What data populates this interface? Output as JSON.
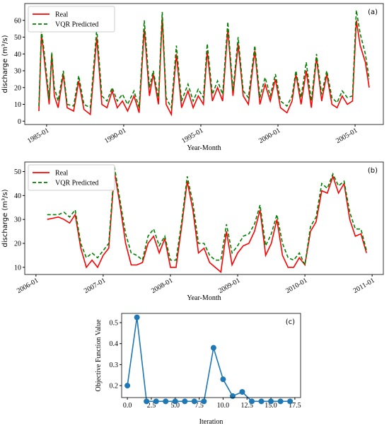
{
  "chart_data": [
    {
      "type": "line",
      "annotation": "(a)",
      "xlabel": "Year-Month",
      "ylabel": "discharge (m³/s)",
      "legend": "upper left",
      "x": [
        "1984-07",
        "1984-09",
        "1984-11",
        "1985-03",
        "1985-05",
        "1985-07",
        "1985-10",
        "1986-02",
        "1986-05",
        "1986-10",
        "1987-02",
        "1987-06",
        "1987-11",
        "1988-04",
        "1988-08",
        "1988-12",
        "1989-04",
        "1989-08",
        "1989-12",
        "1990-04",
        "1990-09",
        "1991-01",
        "1991-05",
        "1991-09",
        "1991-12",
        "1992-04",
        "1992-07",
        "1992-10",
        "1993-02",
        "1993-06",
        "1993-10",
        "1994-03",
        "1994-07",
        "1994-11",
        "1995-03",
        "1995-06",
        "1995-10",
        "1996-02",
        "1996-06",
        "1996-10",
        "1997-02",
        "1997-06",
        "1997-10",
        "1998-02",
        "1998-07",
        "1998-11",
        "1999-03",
        "1999-07",
        "1999-11",
        "2000-03",
        "2000-08",
        "2000-12",
        "2001-03",
        "2001-07",
        "2001-11",
        "2002-03",
        "2002-07",
        "2002-11",
        "2003-03",
        "2003-07",
        "2003-11",
        "2004-03",
        "2004-07",
        "2004-11",
        "2005-02",
        "2005-05",
        "2005-09",
        "2005-12"
      ],
      "series": [
        {
          "name": "Real",
          "color": "#ff0000",
          "linestyle": "solid",
          "values": [
            6,
            52,
            38,
            10,
            40,
            15,
            8,
            28,
            8,
            6,
            24,
            7,
            4,
            50,
            10,
            8,
            18,
            8,
            12,
            6,
            15,
            5,
            55,
            15,
            28,
            10,
            62,
            10,
            4,
            40,
            8,
            18,
            8,
            15,
            10,
            42,
            12,
            20,
            12,
            55,
            15,
            46,
            15,
            10,
            42,
            10,
            22,
            12,
            25,
            8,
            5,
            12,
            28,
            10,
            30,
            8,
            38,
            12,
            28,
            10,
            8,
            15,
            10,
            12,
            60,
            45,
            35,
            20
          ]
        },
        {
          "name": "VQR Predicted",
          "color": "#008000",
          "linestyle": "dashed",
          "values": [
            9,
            54,
            42,
            13,
            41,
            20,
            12,
            30,
            10,
            9,
            27,
            10,
            8,
            55,
            15,
            12,
            20,
            12,
            16,
            10,
            18,
            8,
            60,
            20,
            30,
            14,
            65,
            14,
            8,
            45,
            12,
            22,
            12,
            19,
            14,
            46,
            16,
            24,
            16,
            59,
            18,
            50,
            18,
            14,
            45,
            14,
            26,
            15,
            28,
            12,
            9,
            15,
            30,
            14,
            35,
            12,
            40,
            16,
            30,
            14,
            11,
            18,
            14,
            15,
            66,
            52,
            40,
            25
          ]
        }
      ],
      "xlim": [
        "1983-08",
        "2006-11"
      ],
      "xticks": [
        "1985-01",
        "1990-01",
        "1995-01",
        "2000-01",
        "2005-01"
      ],
      "ylim": [
        -2,
        70
      ],
      "yticks": [
        0,
        10,
        20,
        30,
        40,
        50,
        60
      ]
    },
    {
      "type": "line",
      "annotation": "(b)",
      "xlabel": "Year-Month",
      "ylabel": "discharge (m³/s)",
      "legend": "upper left",
      "x": [
        "2006-03",
        "2006-04",
        "2006-05",
        "2006-06",
        "2006-07",
        "2006-08",
        "2006-09",
        "2006-10",
        "2006-11",
        "2006-12",
        "2007-01",
        "2007-02",
        "2007-03",
        "2007-04",
        "2007-05",
        "2007-06",
        "2007-07",
        "2007-08",
        "2007-09",
        "2007-10",
        "2007-11",
        "2007-12",
        "2008-01",
        "2008-02",
        "2008-03",
        "2008-04",
        "2008-05",
        "2008-06",
        "2008-07",
        "2008-08",
        "2008-09",
        "2008-10",
        "2008-11",
        "2008-12",
        "2009-01",
        "2009-02",
        "2009-03",
        "2009-04",
        "2009-05",
        "2009-06",
        "2009-07",
        "2009-08",
        "2009-09",
        "2009-10",
        "2009-11",
        "2009-12",
        "2010-01",
        "2010-02",
        "2010-03",
        "2010-04",
        "2010-05",
        "2010-06",
        "2010-07",
        "2010-08",
        "2010-09",
        "2010-10",
        "2010-11",
        "2010-12"
      ],
      "series": [
        {
          "name": "Real",
          "color": "#ff0000",
          "linestyle": "solid",
          "values": [
            30,
            30.5,
            31,
            30,
            28.5,
            32,
            18,
            10,
            13,
            10,
            15,
            18,
            50,
            36,
            20,
            11,
            11,
            12,
            20,
            23,
            16,
            22,
            10,
            10,
            27,
            46,
            34,
            16,
            18,
            12,
            10,
            8,
            25,
            11,
            16,
            19,
            20,
            25,
            34,
            15,
            20,
            30,
            15,
            10,
            10,
            14,
            11,
            25,
            29,
            42,
            41,
            48,
            41,
            45,
            30,
            23,
            24,
            16
          ]
        },
        {
          "name": "VQR Predicted",
          "color": "#008000",
          "linestyle": "dashed",
          "values": [
            32,
            32,
            32,
            33,
            31,
            34,
            20,
            14,
            16,
            14,
            17,
            20,
            52,
            38,
            24,
            16,
            15,
            13,
            23,
            26,
            19,
            23,
            13,
            13,
            29,
            48,
            37,
            20,
            20,
            15,
            13,
            13,
            28,
            16,
            19,
            23,
            24,
            28,
            36,
            19,
            24,
            32,
            20,
            14,
            13,
            16,
            11,
            27,
            31,
            45,
            43,
            49,
            44,
            46,
            33,
            26,
            26,
            17
          ]
        }
      ],
      "xlim": [
        "2005-11",
        "2011-03"
      ],
      "xticks": [
        "2006-01",
        "2007-01",
        "2008-01",
        "2009-01",
        "2010-01",
        "2011-01"
      ],
      "ylim": [
        7,
        54
      ],
      "yticks": [
        10,
        20,
        30,
        40,
        50
      ]
    },
    {
      "type": "line",
      "annotation": "(c)",
      "xlabel": "Iteration",
      "ylabel": "Objective Function Value",
      "x": [
        0,
        1,
        2,
        3,
        4,
        5,
        6,
        7,
        8,
        9,
        10,
        11,
        12,
        13,
        14,
        15,
        16,
        17
      ],
      "series": [
        {
          "color": "#1f77b4",
          "linestyle": "solid",
          "marker": "o",
          "values": [
            0.2,
            0.525,
            0.125,
            0.125,
            0.125,
            0.125,
            0.125,
            0.125,
            0.125,
            0.38,
            0.23,
            0.15,
            0.17,
            0.125,
            0.125,
            0.125,
            0.125,
            0.125
          ]
        }
      ],
      "xlim": [
        -0.6,
        18.1
      ],
      "xticks": [
        {
          "value": 0,
          "label": "0.0"
        },
        2.5,
        {
          "value": 5,
          "label": "5.0"
        },
        7.5,
        {
          "value": 10,
          "label": "10.0"
        },
        12.5,
        {
          "value": 15,
          "label": "15.0"
        },
        17.5
      ],
      "ylim": [
        0.143,
        0.544
      ],
      "yticks": [
        0.2,
        0.3,
        0.4,
        0.5
      ]
    }
  ]
}
